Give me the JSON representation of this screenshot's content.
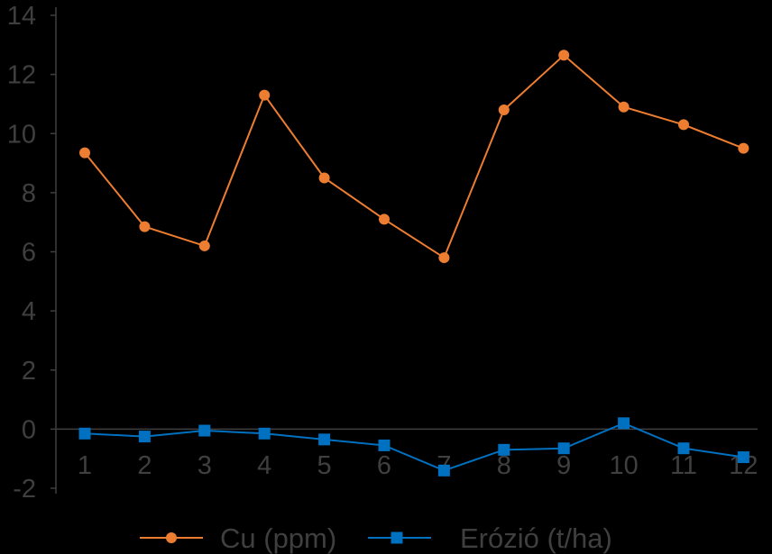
{
  "chart_data": {
    "type": "line",
    "x": [
      "1",
      "2",
      "3",
      "4",
      "5",
      "6",
      "7",
      "8",
      "9",
      "10",
      "11",
      "12"
    ],
    "ylim": [
      -2,
      14
    ],
    "yticks": [
      "14",
      "12",
      "10",
      "8",
      "6",
      "4",
      "2",
      "0",
      "-2"
    ],
    "ytick_values": [
      14,
      12,
      10,
      8,
      6,
      4,
      2,
      0,
      -2
    ],
    "grid": false,
    "legend_position": "bottom",
    "series": [
      {
        "name": "Cu (ppm)",
        "color": "#ed7d31",
        "marker": "circle",
        "values": [
          9.35,
          6.85,
          6.2,
          11.3,
          8.5,
          7.1,
          5.8,
          10.8,
          12.65,
          10.9,
          10.3,
          9.5
        ]
      },
      {
        "name": "Erózió (t/ha)",
        "color": "#0070c0",
        "marker": "square",
        "values": [
          -0.15,
          -0.25,
          -0.05,
          -0.15,
          -0.35,
          -0.55,
          -1.4,
          -0.7,
          -0.65,
          0.2,
          -0.65,
          -0.95
        ]
      }
    ]
  }
}
